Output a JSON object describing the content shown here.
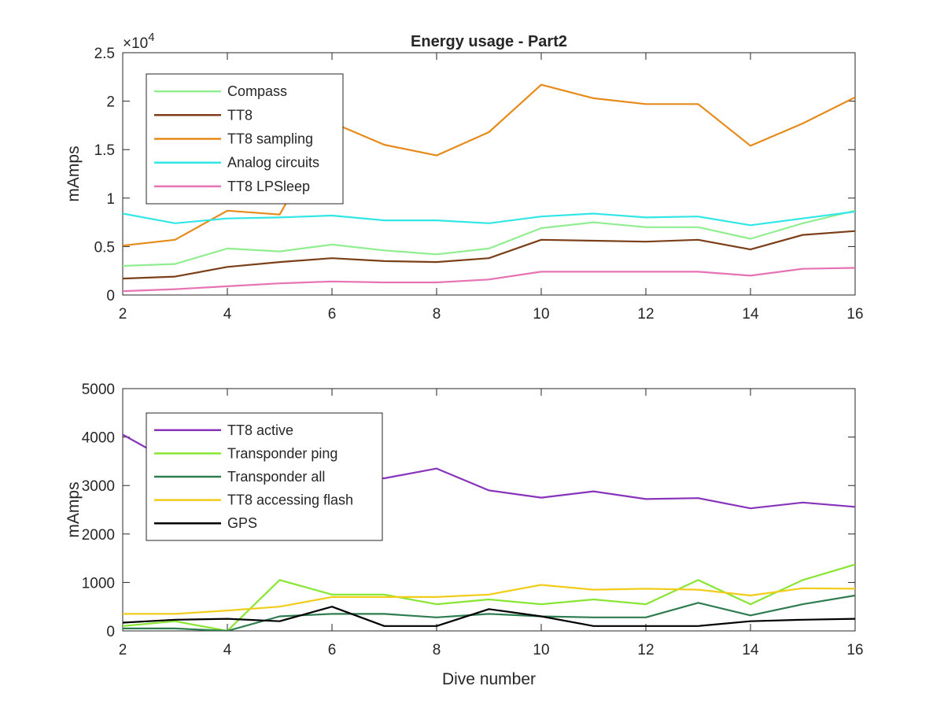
{
  "chart_data": [
    {
      "type": "line",
      "title": "Energy usage - Part2",
      "xlabel": "",
      "ylabel": "mAmps",
      "xlim": [
        2,
        16
      ],
      "ylim": [
        0,
        25000
      ],
      "x_ticks": [
        2,
        4,
        6,
        8,
        10,
        12,
        14,
        16
      ],
      "x_tick_labels": [
        "2",
        "4",
        "6",
        "8",
        "10",
        "12",
        "14",
        "16"
      ],
      "y_ticks": [
        0,
        5000,
        10000,
        15000,
        20000,
        25000
      ],
      "y_tick_labels": [
        "0",
        "0.5",
        "1",
        "1.5",
        "2",
        "2.5"
      ],
      "y_exponent_base": "×10",
      "y_exponent_power": "4",
      "legend_position": "top-left",
      "grid": false,
      "x": [
        2,
        3,
        4,
        5,
        6,
        7,
        8,
        9,
        10,
        11,
        12,
        13,
        14,
        15,
        16
      ],
      "series": [
        {
          "name": "Compass",
          "color": "#90ee90",
          "values": [
            3000,
            3200,
            4800,
            4500,
            5200,
            4600,
            4200,
            4800,
            6900,
            7500,
            7000,
            7000,
            5800,
            7400,
            8700
          ]
        },
        {
          "name": "TT8",
          "color": "#7b3f1a",
          "values": [
            1700,
            1900,
            2900,
            3400,
            3800,
            3500,
            3400,
            3800,
            5700,
            5600,
            5500,
            5700,
            4700,
            6200,
            6600
          ]
        },
        {
          "name": "TT8 sampling",
          "color": "#e68a1a",
          "values": [
            5100,
            5700,
            8700,
            8300,
            17800,
            15500,
            14400,
            16800,
            21700,
            20300,
            19700,
            19700,
            15400,
            17700,
            20400
          ]
        },
        {
          "name": "Analog circuits",
          "color": "#33e6e6",
          "values": [
            8400,
            7400,
            7900,
            8000,
            8200,
            7700,
            7700,
            7400,
            8100,
            8400,
            8000,
            8100,
            7200,
            7900,
            8600
          ]
        },
        {
          "name": "TT8 LPSleep",
          "color": "#e673b3",
          "values": [
            400,
            600,
            900,
            1200,
            1400,
            1300,
            1300,
            1600,
            2400,
            2400,
            2400,
            2400,
            2000,
            2700,
            2800
          ]
        }
      ]
    },
    {
      "type": "line",
      "title": "",
      "xlabel": "Dive number",
      "ylabel": "mAmps",
      "xlim": [
        2,
        16
      ],
      "ylim": [
        0,
        5000
      ],
      "x_ticks": [
        2,
        4,
        6,
        8,
        10,
        12,
        14,
        16
      ],
      "x_tick_labels": [
        "2",
        "4",
        "6",
        "8",
        "10",
        "12",
        "14",
        "16"
      ],
      "y_ticks": [
        0,
        1000,
        2000,
        3000,
        4000,
        5000
      ],
      "y_tick_labels": [
        "0",
        "1000",
        "2000",
        "3000",
        "4000",
        "5000"
      ],
      "legend_position": "top-left",
      "grid": false,
      "x": [
        2,
        3,
        4,
        5,
        6,
        7,
        8,
        9,
        10,
        11,
        12,
        13,
        14,
        15,
        16
      ],
      "series": [
        {
          "name": "TT8 active",
          "color": "#8833bb",
          "values": [
            4050,
            3450,
            3100,
            3000,
            3150,
            3150,
            3350,
            2900,
            2750,
            2880,
            2720,
            2740,
            2530,
            2650,
            2560
          ]
        },
        {
          "name": "Transponder ping",
          "color": "#88e633",
          "values": [
            100,
            200,
            0,
            1050,
            750,
            750,
            550,
            650,
            550,
            650,
            550,
            1050,
            550,
            1050,
            1370
          ]
        },
        {
          "name": "Transponder all",
          "color": "#2e7d4f",
          "values": [
            50,
            50,
            0,
            300,
            350,
            350,
            280,
            350,
            300,
            280,
            280,
            580,
            320,
            550,
            730
          ]
        },
        {
          "name": "TT8 accessing flash",
          "color": "#f2cc1a",
          "values": [
            350,
            350,
            420,
            500,
            700,
            700,
            700,
            750,
            950,
            850,
            870,
            850,
            730,
            880,
            870
          ]
        },
        {
          "name": "GPS",
          "color": "#000000",
          "values": [
            170,
            230,
            250,
            200,
            500,
            100,
            100,
            450,
            300,
            100,
            100,
            100,
            200,
            230,
            250
          ]
        }
      ]
    }
  ]
}
